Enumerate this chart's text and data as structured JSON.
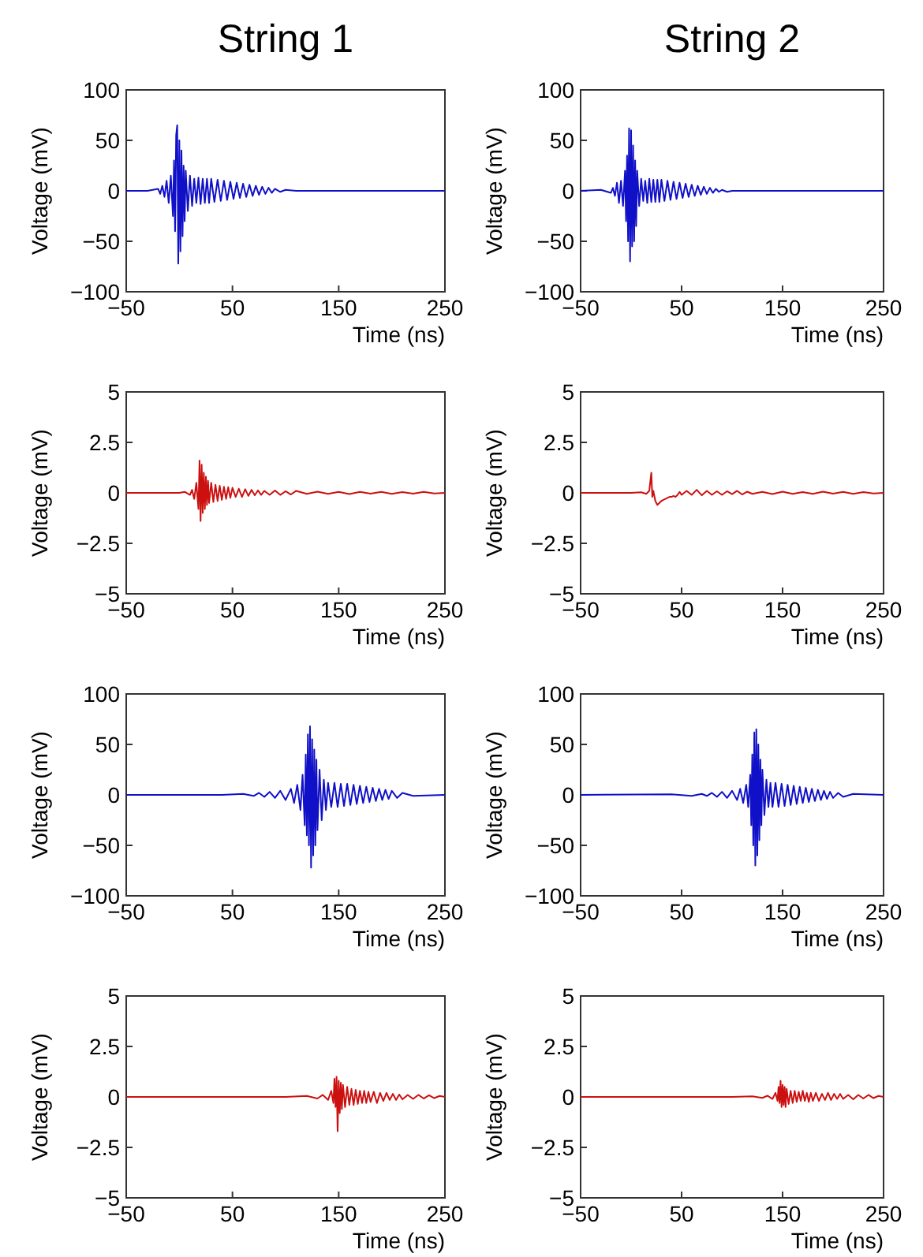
{
  "chart_data": [
    {
      "type": "line",
      "title": "String 1",
      "xlabel": "Time (ns)",
      "ylabel": "Voltage (mV)",
      "xlim": [
        -50,
        250
      ],
      "xticks": [
        -50,
        50,
        150,
        250
      ],
      "ylim": [
        -100,
        100
      ],
      "yticks": [
        -100,
        -50,
        0,
        50,
        100
      ],
      "x": [
        -50,
        -30,
        -20,
        -18,
        -16,
        -14,
        -12,
        -10,
        -8,
        -6,
        -5,
        -4,
        -3,
        -2,
        -1,
        0,
        1,
        2,
        3,
        4,
        5,
        6,
        8,
        10,
        12,
        14,
        16,
        18,
        20,
        22,
        24,
        26,
        28,
        30,
        33,
        36,
        39,
        42,
        45,
        48,
        51,
        54,
        57,
        60,
        63,
        66,
        69,
        72,
        75,
        78,
        81,
        84,
        87,
        90,
        95,
        100,
        110,
        250
      ],
      "series": [
        {
          "color": "#1010c8",
          "values": [
            0,
            0,
            2,
            -3,
            5,
            -6,
            10,
            -12,
            15,
            -25,
            30,
            -40,
            55,
            65,
            -72,
            50,
            -60,
            40,
            -45,
            25,
            -30,
            20,
            -20,
            15,
            -15,
            12,
            -12,
            13,
            -13,
            12,
            -12,
            12,
            -12,
            12,
            -11,
            11,
            -10,
            10,
            -9,
            9,
            -8,
            8,
            -7,
            7,
            -6,
            6,
            -5,
            5,
            -4,
            4,
            -3,
            3,
            -2,
            2,
            -1,
            1,
            0,
            0
          ]
        }
      ]
    },
    {
      "type": "line",
      "title": "String 2",
      "xlabel": "Time (ns)",
      "ylabel": "Voltage (mV)",
      "xlim": [
        -50,
        250
      ],
      "xticks": [
        -50,
        50,
        150,
        250
      ],
      "ylim": [
        -100,
        100
      ],
      "yticks": [
        -100,
        -50,
        0,
        50,
        100
      ],
      "x": [
        -50,
        -30,
        -20,
        -18,
        -16,
        -14,
        -12,
        -10,
        -8,
        -6,
        -5,
        -4,
        -3,
        -2,
        -1,
        0,
        1,
        2,
        3,
        4,
        5,
        6,
        8,
        10,
        12,
        14,
        16,
        18,
        20,
        22,
        24,
        26,
        28,
        30,
        33,
        36,
        39,
        42,
        45,
        48,
        51,
        54,
        57,
        60,
        63,
        66,
        69,
        72,
        75,
        78,
        81,
        84,
        87,
        90,
        95,
        100,
        110,
        250
      ],
      "series": [
        {
          "color": "#1010c8",
          "values": [
            0,
            1,
            -2,
            3,
            -5,
            8,
            -12,
            10,
            -15,
            20,
            -30,
            35,
            -50,
            62,
            -70,
            60,
            -55,
            45,
            -50,
            30,
            -35,
            20,
            -15,
            12,
            -10,
            10,
            -12,
            12,
            -11,
            11,
            -11,
            11,
            -11,
            11,
            -10,
            10,
            -9,
            9,
            -8,
            8,
            -7,
            7,
            -6,
            6,
            -5,
            5,
            -4,
            4,
            -3,
            3,
            -2,
            2,
            -1,
            1,
            -1,
            0,
            0,
            0
          ]
        }
      ]
    },
    {
      "type": "line",
      "xlabel": "Time (ns)",
      "ylabel": "Voltage (mV)",
      "xlim": [
        -50,
        250
      ],
      "xticks": [
        -50,
        50,
        150,
        250
      ],
      "ylim": [
        -5,
        5
      ],
      "yticks": [
        -5,
        -2.5,
        0,
        2.5,
        5
      ],
      "x": [
        -50,
        0,
        5,
        10,
        12,
        14,
        16,
        18,
        19,
        20,
        21,
        22,
        23,
        24,
        25,
        26,
        27,
        28,
        30,
        32,
        34,
        36,
        38,
        40,
        42,
        44,
        46,
        48,
        50,
        53,
        56,
        59,
        62,
        65,
        68,
        71,
        74,
        77,
        80,
        85,
        90,
        95,
        100,
        105,
        110,
        120,
        130,
        140,
        150,
        160,
        170,
        180,
        190,
        200,
        210,
        220,
        230,
        240,
        250
      ],
      "series": [
        {
          "color": "#cc1010",
          "values": [
            0,
            0,
            0.05,
            -0.1,
            0.15,
            -0.3,
            0.5,
            -0.8,
            1.6,
            -1.4,
            1.4,
            -1.0,
            1.0,
            -0.8,
            0.8,
            -0.6,
            0.6,
            -0.5,
            0.5,
            -0.45,
            0.4,
            -0.4,
            0.35,
            -0.35,
            0.3,
            -0.3,
            0.28,
            -0.25,
            0.25,
            -0.2,
            0.2,
            -0.2,
            0.18,
            -0.15,
            0.15,
            -0.12,
            0.12,
            -0.1,
            0.1,
            -0.1,
            0.12,
            -0.1,
            0.08,
            -0.08,
            0.1,
            -0.05,
            0.06,
            -0.05,
            0.05,
            -0.06,
            0.05,
            -0.04,
            0.05,
            -0.05,
            0.04,
            -0.04,
            0.05,
            -0.03,
            0
          ]
        }
      ]
    },
    {
      "type": "line",
      "xlabel": "Time (ns)",
      "ylabel": "Voltage (mV)",
      "xlim": [
        -50,
        250
      ],
      "xticks": [
        -50,
        50,
        150,
        250
      ],
      "ylim": [
        -5,
        5
      ],
      "yticks": [
        -5,
        -2.5,
        0,
        2.5,
        5
      ],
      "x": [
        -50,
        0,
        10,
        15,
        18,
        20,
        21,
        22,
        24,
        26,
        28,
        30,
        32,
        34,
        36,
        38,
        40,
        42,
        44,
        46,
        48,
        50,
        55,
        60,
        65,
        70,
        75,
        80,
        85,
        90,
        95,
        100,
        105,
        110,
        115,
        120,
        130,
        140,
        150,
        160,
        170,
        180,
        190,
        200,
        210,
        220,
        230,
        240,
        250
      ],
      "series": [
        {
          "color": "#cc1010",
          "values": [
            0,
            0,
            0.03,
            -0.05,
            0.1,
            1.0,
            -0.2,
            0.1,
            -0.4,
            -0.6,
            -0.5,
            -0.4,
            -0.35,
            -0.3,
            -0.25,
            -0.2,
            -0.2,
            -0.15,
            -0.2,
            -0.1,
            0.05,
            -0.1,
            0.1,
            -0.1,
            0.15,
            -0.12,
            0.1,
            -0.1,
            0.08,
            -0.1,
            0.08,
            -0.06,
            0.1,
            -0.08,
            0.06,
            -0.05,
            0.05,
            -0.06,
            0.06,
            -0.05,
            0.04,
            -0.05,
            0.06,
            -0.04,
            0.05,
            -0.05,
            0.04,
            -0.03,
            0
          ]
        }
      ]
    },
    {
      "type": "line",
      "xlabel": "Time (ns)",
      "ylabel": "Voltage (mV)",
      "xlim": [
        -50,
        250
      ],
      "xticks": [
        -50,
        50,
        150,
        250
      ],
      "ylim": [
        -100,
        100
      ],
      "yticks": [
        -100,
        -50,
        0,
        50,
        100
      ],
      "x": [
        -50,
        40,
        60,
        70,
        75,
        80,
        85,
        90,
        95,
        100,
        105,
        108,
        111,
        114,
        116,
        118,
        119,
        120,
        121,
        122,
        123,
        124,
        125,
        126,
        127,
        128,
        129,
        130,
        132,
        134,
        136,
        138,
        140,
        143,
        146,
        149,
        152,
        155,
        158,
        161,
        164,
        167,
        170,
        173,
        176,
        179,
        182,
        185,
        188,
        191,
        194,
        197,
        200,
        205,
        210,
        220,
        250
      ],
      "series": [
        {
          "color": "#1010c8",
          "values": [
            0,
            0,
            1,
            -1,
            2,
            -2,
            3,
            -3,
            4,
            -5,
            6,
            -8,
            10,
            -15,
            20,
            -30,
            40,
            -40,
            60,
            -50,
            68,
            -72,
            55,
            -60,
            45,
            -50,
            35,
            -35,
            25,
            -25,
            15,
            -15,
            12,
            -12,
            12,
            -12,
            11,
            -11,
            11,
            -10,
            10,
            -9,
            9,
            -8,
            8,
            -7,
            7,
            -6,
            6,
            -5,
            5,
            -4,
            4,
            -3,
            2,
            -1,
            0
          ]
        }
      ]
    },
    {
      "type": "line",
      "xlabel": "Time (ns)",
      "ylabel": "Voltage (mV)",
      "xlim": [
        -50,
        250
      ],
      "xticks": [
        -50,
        50,
        150,
        250
      ],
      "ylim": [
        -100,
        100
      ],
      "yticks": [
        -100,
        -50,
        0,
        50,
        100
      ],
      "x": [
        -50,
        40,
        60,
        70,
        75,
        80,
        85,
        90,
        95,
        100,
        105,
        108,
        111,
        114,
        116,
        118,
        119,
        120,
        121,
        122,
        123,
        124,
        125,
        126,
        127,
        128,
        129,
        130,
        132,
        134,
        136,
        138,
        140,
        143,
        146,
        149,
        152,
        155,
        158,
        161,
        164,
        167,
        170,
        173,
        176,
        179,
        182,
        185,
        188,
        191,
        194,
        197,
        200,
        205,
        210,
        220,
        250
      ],
      "series": [
        {
          "color": "#1010c8",
          "values": [
            0,
            0.5,
            -1,
            1,
            -1,
            2,
            -2,
            3,
            -3,
            4,
            -5,
            6,
            -8,
            10,
            -12,
            20,
            -30,
            40,
            -50,
            62,
            -70,
            65,
            -60,
            50,
            -45,
            35,
            -30,
            25,
            -20,
            15,
            -12,
            12,
            -12,
            12,
            -12,
            11,
            -11,
            10,
            -10,
            9,
            -9,
            8,
            -8,
            7,
            -7,
            6,
            -6,
            5,
            -5,
            4,
            -4,
            3,
            -3,
            2,
            -2,
            1,
            0
          ]
        }
      ]
    },
    {
      "type": "line",
      "xlabel": "Time (ns)",
      "ylabel": "Voltage (mV)",
      "xlim": [
        -50,
        250
      ],
      "xticks": [
        -50,
        50,
        150,
        250
      ],
      "ylim": [
        -5,
        5
      ],
      "yticks": [
        -5,
        -2.5,
        0,
        2.5,
        5
      ],
      "x": [
        -50,
        100,
        120,
        130,
        135,
        140,
        143,
        145,
        146,
        147,
        148,
        149,
        150,
        151,
        152,
        153,
        154,
        156,
        158,
        160,
        162,
        164,
        166,
        168,
        170,
        172,
        174,
        176,
        178,
        180,
        183,
        186,
        189,
        192,
        195,
        198,
        201,
        204,
        207,
        210,
        215,
        220,
        225,
        230,
        235,
        240,
        245,
        250
      ],
      "series": [
        {
          "color": "#cc1010",
          "values": [
            0,
            0,
            0.05,
            -0.08,
            0.1,
            -0.15,
            0.3,
            -0.3,
            0.9,
            -0.5,
            1.0,
            -1.7,
            0.8,
            -0.8,
            0.7,
            -0.6,
            0.6,
            -0.5,
            0.5,
            -0.4,
            0.4,
            -0.4,
            0.35,
            -0.35,
            0.3,
            -0.3,
            0.3,
            -0.3,
            0.25,
            -0.25,
            0.25,
            -0.3,
            0.2,
            -0.2,
            0.2,
            -0.15,
            0.15,
            -0.15,
            0.12,
            -0.12,
            0.1,
            -0.1,
            0.1,
            -0.08,
            0.08,
            -0.06,
            0.05,
            0
          ]
        }
      ]
    },
    {
      "type": "line",
      "xlabel": "Time (ns)",
      "ylabel": "Voltage (mV)",
      "xlim": [
        -50,
        250
      ],
      "xticks": [
        -50,
        50,
        150,
        250
      ],
      "ylim": [
        -5,
        5
      ],
      "yticks": [
        -5,
        -2.5,
        0,
        2.5,
        5
      ],
      "x": [
        -50,
        100,
        120,
        130,
        135,
        140,
        143,
        145,
        146,
        147,
        148,
        149,
        150,
        151,
        152,
        153,
        154,
        156,
        158,
        160,
        162,
        164,
        166,
        168,
        170,
        172,
        174,
        176,
        178,
        180,
        183,
        186,
        189,
        192,
        195,
        198,
        201,
        204,
        207,
        210,
        215,
        220,
        225,
        230,
        235,
        240,
        245,
        250
      ],
      "series": [
        {
          "color": "#cc1010",
          "values": [
            0,
            0,
            0.03,
            -0.05,
            0.06,
            -0.1,
            0.2,
            -0.2,
            0.5,
            -0.3,
            0.8,
            -0.5,
            0.6,
            -0.4,
            0.5,
            -0.5,
            0.4,
            -0.35,
            0.3,
            -0.3,
            0.3,
            -0.25,
            0.25,
            -0.2,
            0.3,
            -0.2,
            0.2,
            -0.25,
            0.2,
            -0.2,
            0.2,
            -0.2,
            0.15,
            -0.15,
            0.2,
            -0.15,
            0.15,
            -0.1,
            0.15,
            -0.1,
            0.1,
            -0.12,
            0.1,
            -0.08,
            0.1,
            -0.06,
            0.05,
            0
          ]
        }
      ]
    }
  ]
}
